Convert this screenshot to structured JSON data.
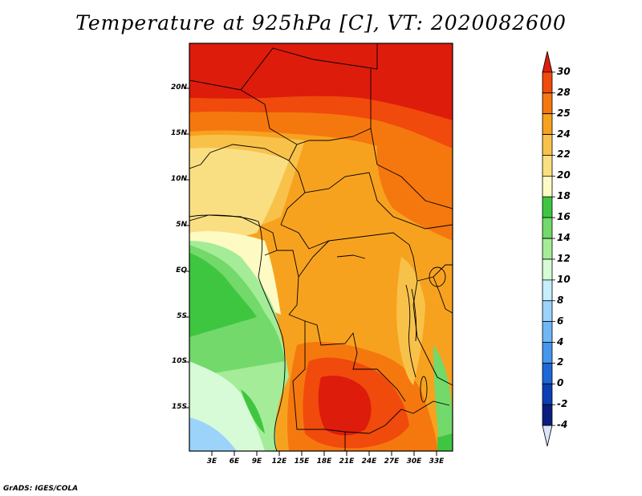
{
  "title": "Temperature at 925hPa [C], VT: 2020082600",
  "footer": "GrADS: IGES/COLA",
  "y_ticks": [
    "20N",
    "15N",
    "10N",
    "5N",
    "EQ",
    "5S",
    "10S",
    "15S"
  ],
  "x_ticks": [
    "3E",
    "6E",
    "9E",
    "12E",
    "15E",
    "18E",
    "21E",
    "24E",
    "27E",
    "30E",
    "33E"
  ],
  "colorbar": {
    "labels": [
      "30",
      "28",
      "25",
      "24",
      "22",
      "20",
      "18",
      "16",
      "14",
      "12",
      "10",
      "8",
      "6",
      "4",
      "2",
      "0",
      "-2",
      "-4"
    ],
    "colors": [
      "#dd1c0c",
      "#f04a0c",
      "#f5780f",
      "#f7a21f",
      "#f8c24a",
      "#fadf82",
      "#fdfbc3",
      "#3fc640",
      "#72d96a",
      "#a4ec98",
      "#d6fbd6",
      "#c6eefd",
      "#9bd3fb",
      "#6fb7f5",
      "#4496ee",
      "#1d68d7",
      "#0a3fb4",
      "#0b1e7e",
      "#dde3fb"
    ]
  },
  "map": {
    "lon_range": [
      0,
      35
    ],
    "lat_range": [
      -20,
      25
    ]
  }
}
